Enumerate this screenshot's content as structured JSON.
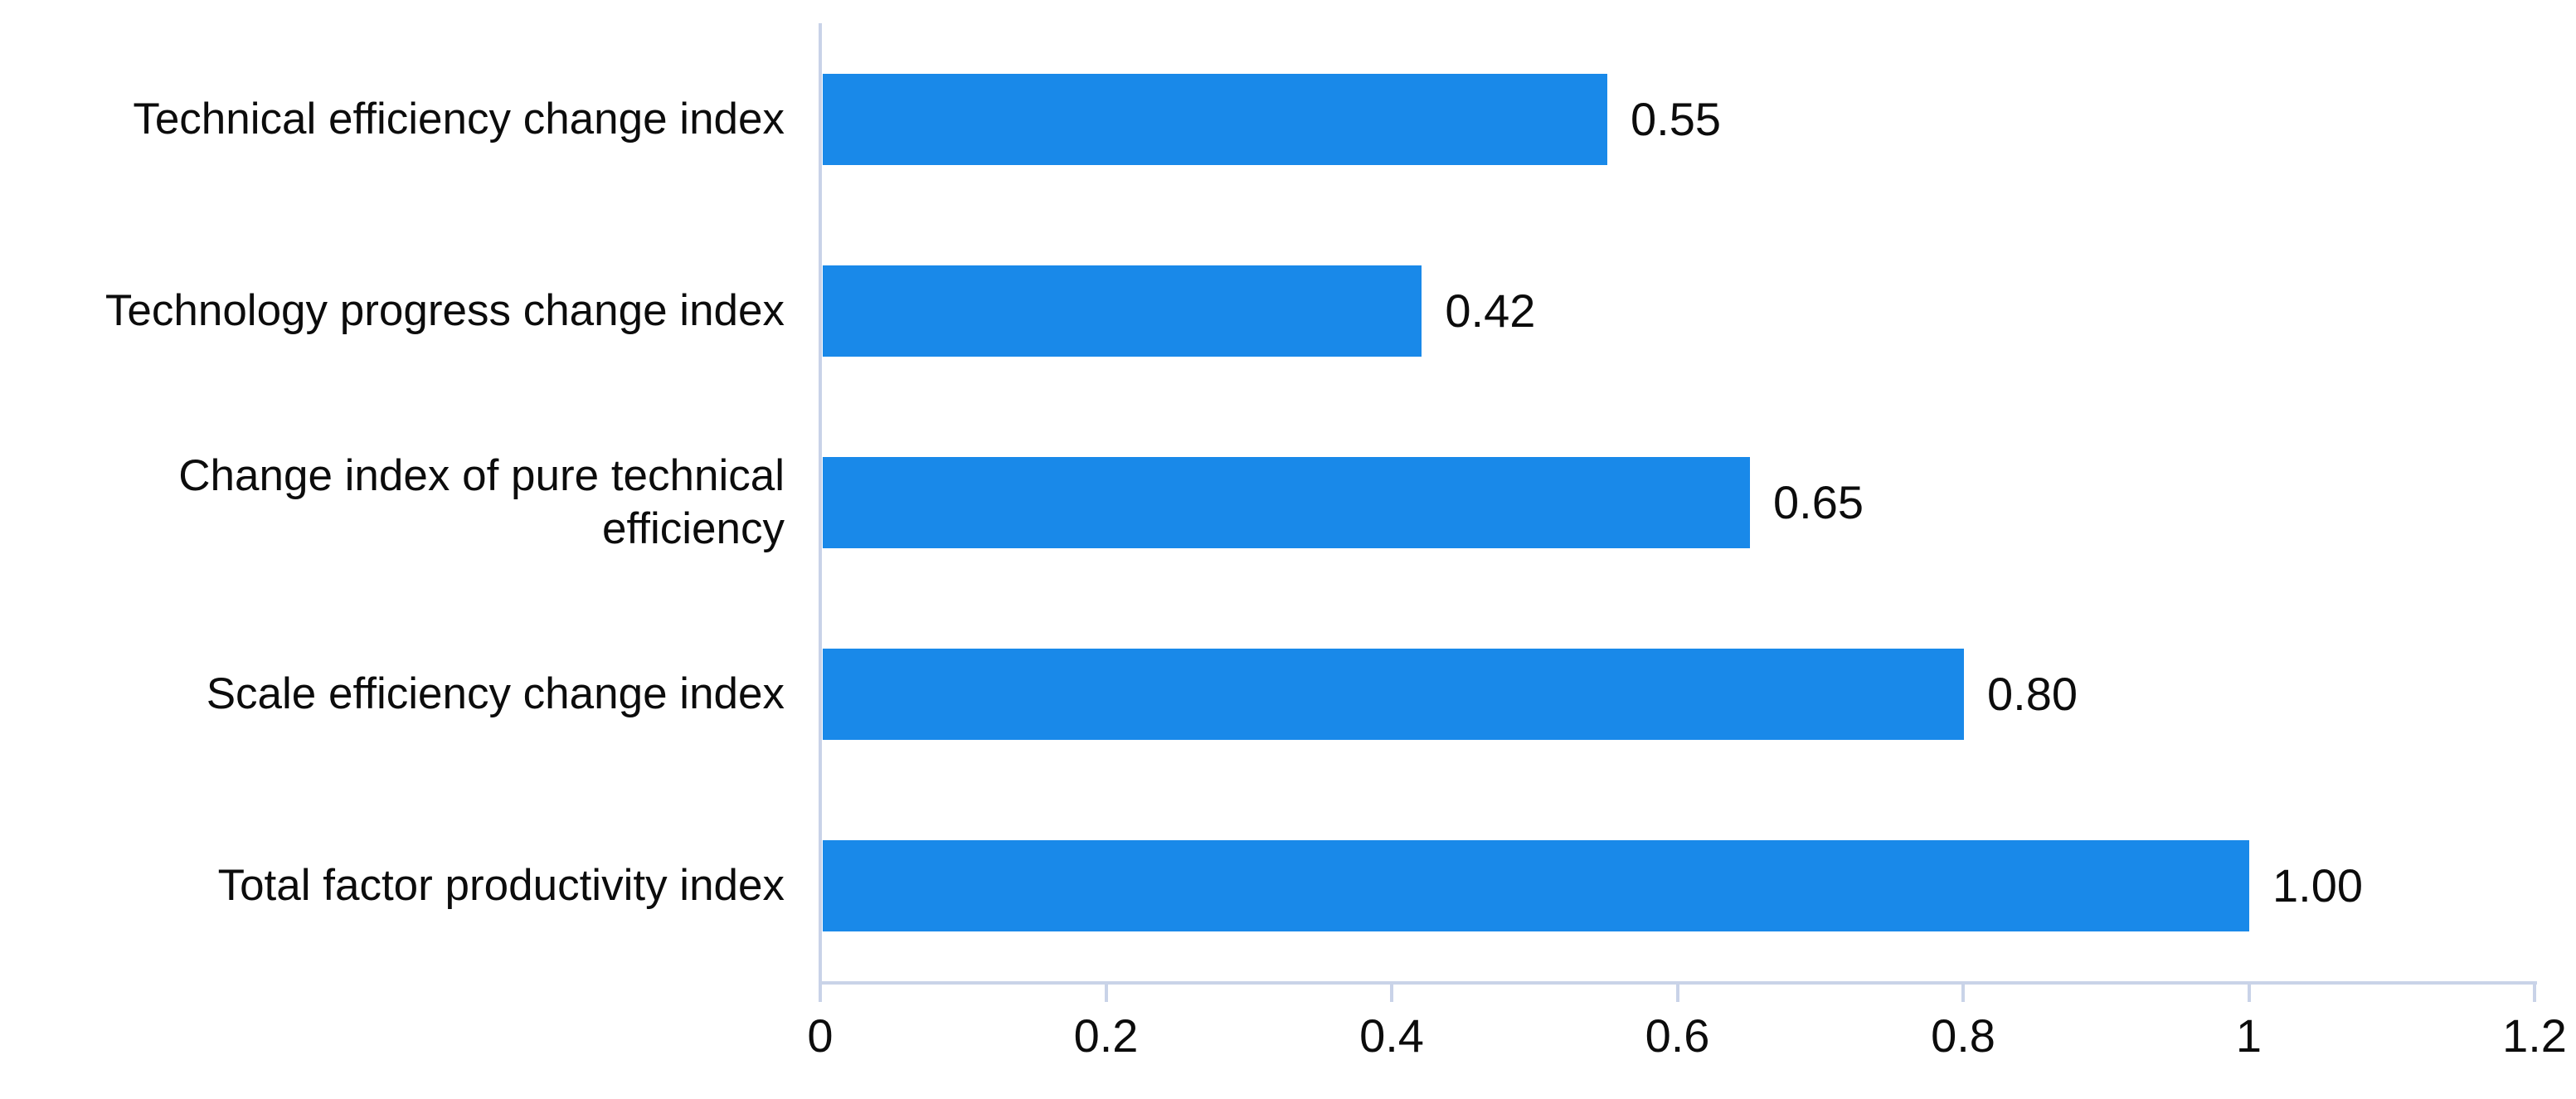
{
  "chart_data": {
    "type": "bar",
    "orientation": "horizontal",
    "title": "",
    "categories": [
      "Technical efficiency change index",
      "Technology progress change index",
      "Change index of pure technical\nefficiency",
      "Scale efficiency change index",
      "Total factor productivity index"
    ],
    "values": [
      0.55,
      0.42,
      0.65,
      0.8,
      1.0
    ],
    "value_labels": [
      "0.55",
      "0.42",
      "0.65",
      "0.80",
      "1.00"
    ],
    "x_ticks": [
      {
        "value": 0,
        "label": "0"
      },
      {
        "value": 0.2,
        "label": "0.2"
      },
      {
        "value": 0.4,
        "label": "0.4"
      },
      {
        "value": 0.6,
        "label": "0.6"
      },
      {
        "value": 0.8,
        "label": "0.8"
      },
      {
        "value": 1,
        "label": "1"
      },
      {
        "value": 1.2,
        "label": "1.2"
      }
    ],
    "xlim": [
      0,
      1.2
    ],
    "grid": false,
    "legend": "none",
    "colors": {
      "bar": "#1989e9",
      "axis": "#c9d3e8",
      "text": "#0c0c0c",
      "background": "#ffffff"
    }
  }
}
